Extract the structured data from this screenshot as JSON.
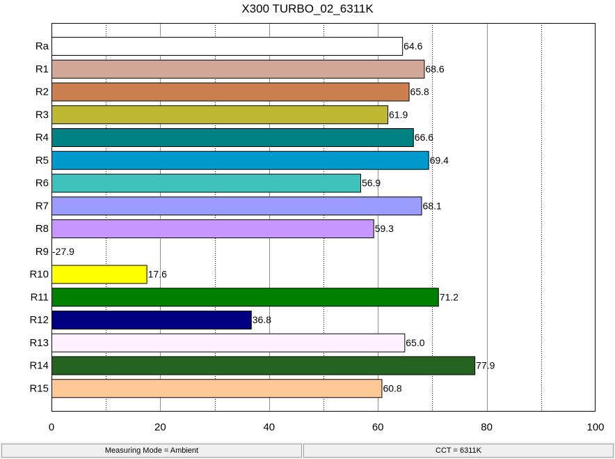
{
  "chart_data": {
    "type": "bar",
    "orientation": "horizontal",
    "title": "X300 TURBO_02_6311K",
    "categories": [
      "Ra",
      "R1",
      "R2",
      "R3",
      "R4",
      "R5",
      "R6",
      "R7",
      "R8",
      "R9",
      "R10",
      "R11",
      "R12",
      "R13",
      "R14",
      "R15"
    ],
    "values": [
      64.6,
      68.6,
      65.8,
      61.9,
      66.6,
      69.4,
      56.9,
      68.1,
      59.3,
      -27.9,
      17.6,
      71.2,
      36.8,
      65.0,
      77.9,
      60.8
    ],
    "value_labels": [
      "64.6",
      "68.6",
      "65.8",
      "61.9",
      "66.6",
      "69.4",
      "56.9",
      "68.1",
      "59.3",
      "-27.9",
      "17.6",
      "71.2",
      "36.8",
      "65.0",
      "77.9",
      "60.8"
    ],
    "colors": [
      "#ffffff",
      "#d2a898",
      "#cc8050",
      "#bfb832",
      "#008080",
      "#009acd",
      "#40c2bc",
      "#9c9cff",
      "#c896ff",
      "#ffffff",
      "#ffff00",
      "#008000",
      "#000080",
      "#fff0ff",
      "#246420",
      "#ffc896"
    ],
    "xlim": [
      0,
      100
    ],
    "xticks": [
      0,
      20,
      40,
      60,
      80,
      100
    ],
    "xtick_labels": [
      "0",
      "20",
      "40",
      "60",
      "80",
      "100"
    ],
    "grid": {
      "solid_at": [
        20,
        40,
        60,
        80
      ],
      "dotted_at": [
        10,
        30,
        50,
        70,
        90
      ]
    },
    "legend": "none"
  },
  "status": {
    "left": "Measuring Mode = Ambient",
    "right": "CCT = 6311K"
  }
}
